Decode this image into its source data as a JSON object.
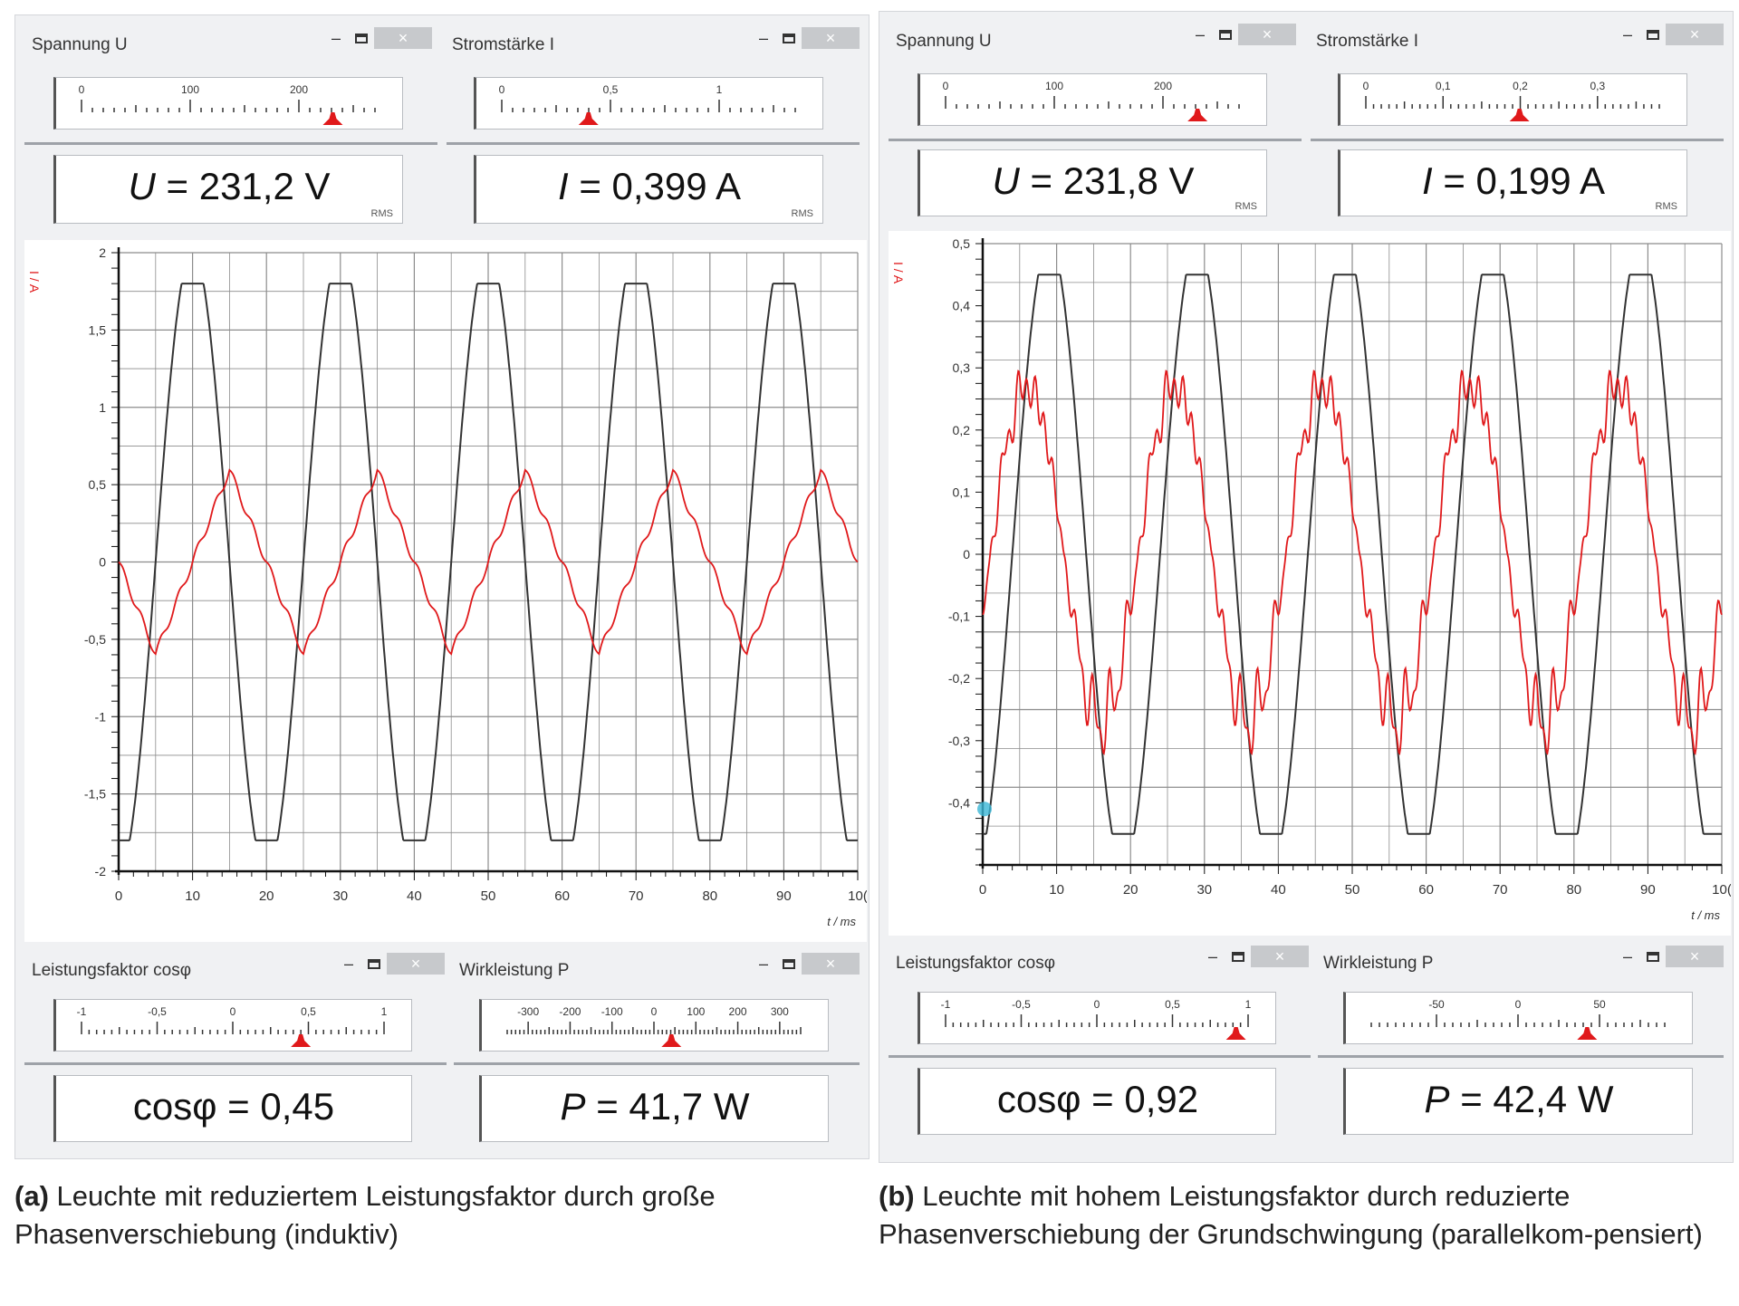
{
  "panels": [
    {
      "id": "a",
      "voltage": {
        "title": "Spannung U",
        "scale_ticks": [
          "0",
          "100",
          "200"
        ],
        "scale_min": 0,
        "scale_max": 270,
        "marker": 231.2,
        "readout_symbol": "U",
        "readout": "= 231,2 V",
        "rms": "RMS"
      },
      "current": {
        "title": "Stromstärke I",
        "scale_ticks": [
          "0",
          "0,5",
          "1"
        ],
        "scale_min": 0,
        "scale_max": 1.35,
        "marker": 0.399,
        "readout_symbol": "I",
        "readout": "= 0,399 A",
        "rms": "RMS"
      },
      "powerfactor": {
        "title": "Leistungsfaktor cosφ",
        "scale_ticks": [
          "-1",
          "-0,5",
          "0",
          "0,5",
          "1"
        ],
        "scale_min": -1,
        "scale_max": 1,
        "marker": 0.45,
        "readout_symbol": "cosφ",
        "readout": "= 0,45"
      },
      "power": {
        "title": "Wirkleistung P",
        "scale_ticks": [
          "-300",
          "-200",
          "-100",
          "0",
          "100",
          "200",
          "300"
        ],
        "scale_min": -350,
        "scale_max": 350,
        "marker": 41.7,
        "readout_symbol": "P",
        "readout": "= 41,7 W"
      },
      "caption_label": "(a)",
      "caption_text": " Leuchte mit reduziertem Leistungsfaktor durch große Phasenverschiebung (induktiv)"
    },
    {
      "id": "b",
      "voltage": {
        "title": "Spannung U",
        "scale_ticks": [
          "0",
          "100",
          "200"
        ],
        "scale_min": 0,
        "scale_max": 270,
        "marker": 231.8,
        "readout_symbol": "U",
        "readout": "= 231,8 V",
        "rms": "RMS"
      },
      "current": {
        "title": "Stromstärke I",
        "scale_ticks": [
          "0",
          "0,1",
          "0,2",
          "0,3"
        ],
        "scale_min": 0,
        "scale_max": 0.38,
        "marker": 0.199,
        "readout_symbol": "I",
        "readout": "= 0,199 A",
        "rms": "RMS"
      },
      "powerfactor": {
        "title": "Leistungsfaktor cosφ",
        "scale_ticks": [
          "-1",
          "-0,5",
          "0",
          "0,5",
          "1"
        ],
        "scale_min": -1,
        "scale_max": 1,
        "marker": 0.92,
        "readout_symbol": "cosφ",
        "readout": "= 0,92"
      },
      "power": {
        "title": "Wirkleistung P",
        "scale_ticks": [
          "-50",
          "0",
          "50"
        ],
        "scale_min": -90,
        "scale_max": 90,
        "marker": 42.4,
        "readout_symbol": "P",
        "readout": "= 42,4 W"
      },
      "caption_label": "(b)",
      "caption_text": " Leuchte mit hohem Leistungsfaktor durch reduzierte Phasenverschiebung der Grundschwingung (parallelkom-pensiert)"
    }
  ],
  "window_buttons": {
    "minimize": "–",
    "close": "×"
  },
  "chart_data": [
    {
      "type": "line",
      "panel": "a",
      "ylabel": "I / A",
      "xlabel": "t / ms",
      "xlim": [
        0,
        100
      ],
      "ylim": [
        -2,
        2
      ],
      "x_ticks": [
        "0",
        "10",
        "20",
        "30",
        "40",
        "50",
        "60",
        "70",
        "80",
        "90",
        "10("
      ],
      "y_ticks": [
        "2",
        "1,5",
        "1",
        "0,5",
        "0",
        "-0,5",
        "-1",
        "-1,5",
        "-2"
      ],
      "grid": true,
      "series": [
        {
          "color": "#333333",
          "shape": "clipped-sine",
          "amplitude": 1.8,
          "period_ms": 20,
          "phase_deg": -90,
          "points": [
            [
              0,
              -1.78
            ],
            [
              5,
              0
            ],
            [
              10,
              1.78
            ],
            [
              15,
              0
            ],
            [
              20,
              -1.78
            ],
            [
              25,
              0
            ],
            [
              30,
              1.78
            ],
            [
              35,
              0
            ],
            [
              40,
              -1.78
            ],
            [
              45,
              0
            ],
            [
              50,
              1.78
            ],
            [
              55,
              0
            ],
            [
              60,
              -1.78
            ],
            [
              65,
              0
            ],
            [
              70,
              1.78
            ],
            [
              75,
              0
            ],
            [
              80,
              -1.78
            ],
            [
              85,
              0
            ],
            [
              90,
              1.78
            ],
            [
              95,
              0
            ],
            [
              99,
              -1.25
            ]
          ]
        },
        {
          "color": "#e0191b",
          "shape": "triangle",
          "amplitude": 0.62,
          "period_ms": 20,
          "points": [
            [
              0,
              -0.1
            ],
            [
              5,
              -0.62
            ],
            [
              15,
              0.62
            ],
            [
              25,
              -0.62
            ],
            [
              35,
              0.62
            ],
            [
              45,
              -0.62
            ],
            [
              55,
              0.62
            ],
            [
              65,
              -0.62
            ],
            [
              75,
              0.62
            ],
            [
              85,
              -0.62
            ],
            [
              95,
              0.62
            ],
            [
              100,
              0.05
            ]
          ]
        }
      ]
    },
    {
      "type": "line",
      "panel": "b",
      "ylabel": "I / A",
      "xlabel": "t / ms",
      "xlim": [
        0,
        100
      ],
      "ylim": [
        -0.5,
        0.5
      ],
      "x_ticks": [
        "0",
        "10",
        "20",
        "30",
        "40",
        "50",
        "60",
        "70",
        "80",
        "90",
        "10("
      ],
      "y_ticks": [
        "0,5",
        "0,4",
        "0,3",
        "0,2",
        "0,1",
        "0",
        "-0,1",
        "-0,2",
        "-0,3",
        "-0,4"
      ],
      "grid": true,
      "series": [
        {
          "color": "#333333",
          "shape": "clipped-sine",
          "amplitude": 0.45,
          "period_ms": 20,
          "phase_deg": -90,
          "points": [
            [
              0,
              -0.45
            ],
            [
              4,
              0
            ],
            [
              9,
              0.45
            ],
            [
              14,
              0
            ],
            [
              19,
              -0.45
            ],
            [
              24,
              0
            ],
            [
              29,
              0.45
            ],
            [
              34,
              0
            ],
            [
              39,
              -0.45
            ],
            [
              44,
              0
            ],
            [
              49,
              0.45
            ],
            [
              54,
              0
            ],
            [
              59,
              -0.45
            ],
            [
              64,
              0
            ],
            [
              69,
              0.45
            ],
            [
              74,
              0
            ],
            [
              79,
              -0.45
            ],
            [
              84,
              0
            ],
            [
              89,
              0.45
            ],
            [
              94,
              0
            ],
            [
              99,
              -0.44
            ]
          ]
        },
        {
          "color": "#e0191b",
          "shape": "noisy-sine",
          "amplitude": 0.33,
          "period_ms": 20,
          "points": [
            [
              0,
              0
            ],
            [
              6,
              0.33
            ],
            [
              11,
              0.2
            ],
            [
              16,
              -0.33
            ],
            [
              21,
              -0.2
            ],
            [
              26,
              0.33
            ],
            [
              31,
              0.2
            ],
            [
              36,
              -0.33
            ],
            [
              41,
              -0.2
            ],
            [
              46,
              0.33
            ],
            [
              51,
              0.2
            ],
            [
              56,
              -0.33
            ],
            [
              61,
              -0.2
            ],
            [
              66,
              0.33
            ],
            [
              71,
              0.2
            ],
            [
              76,
              -0.33
            ],
            [
              81,
              -0.2
            ],
            [
              86,
              0.33
            ],
            [
              91,
              0.2
            ],
            [
              96,
              -0.33
            ],
            [
              100,
              -0.25
            ]
          ]
        }
      ]
    }
  ]
}
